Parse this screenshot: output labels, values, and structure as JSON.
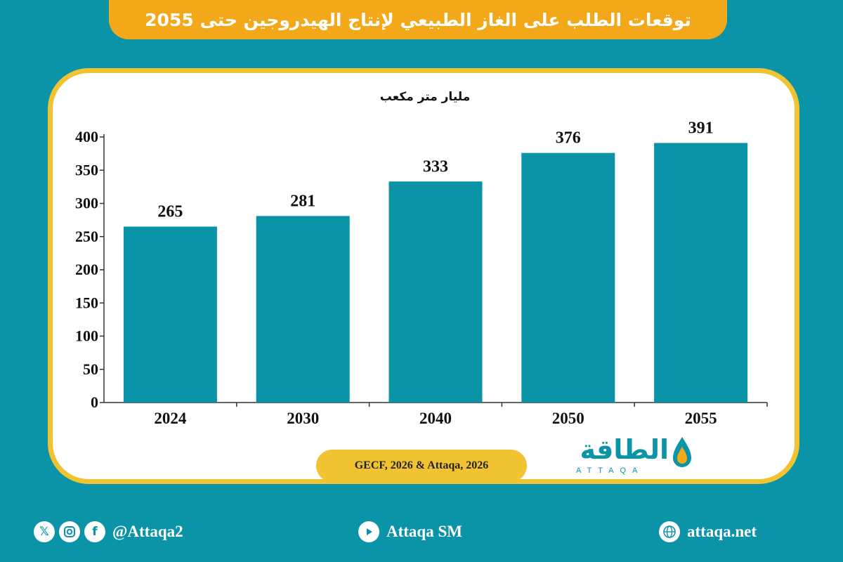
{
  "header": {
    "title": "توقعات الطلب على الغاز الطبيعي لإنتاج الهيدروجين حتى 2055"
  },
  "colors": {
    "background": "#0b93a8",
    "bar": "#0b93a8",
    "banner": "#f3a81a",
    "frame": "#f1c232"
  },
  "chart_data": {
    "type": "bar",
    "title": "توقعات الطلب على الغاز الطبيعي لإنتاج الهيدروجين حتى 2055",
    "ylabel": "مليار متر مكعب",
    "xlabel": "",
    "categories": [
      "2024",
      "2030",
      "2040",
      "2050",
      "2055"
    ],
    "values": [
      265,
      281,
      333,
      376,
      391
    ],
    "value_labels": [
      "265",
      "281",
      "333",
      "376",
      "391"
    ],
    "ylim": [
      0,
      400
    ],
    "yticks": [
      "0",
      "50",
      "100",
      "150",
      "200",
      "250",
      "300",
      "350",
      "400"
    ],
    "grid": false,
    "legend": "none"
  },
  "source": "GECF, 2026 & Attaqa, 2026",
  "logo": {
    "arabic": "الطاقة",
    "english": "ATTAQA"
  },
  "footer": {
    "social_handle": "@Attaqa2",
    "social_icons": [
      "x-icon",
      "instagram-icon",
      "facebook-icon"
    ],
    "youtube": "Attaqa SM",
    "website": "attaqa.net"
  }
}
